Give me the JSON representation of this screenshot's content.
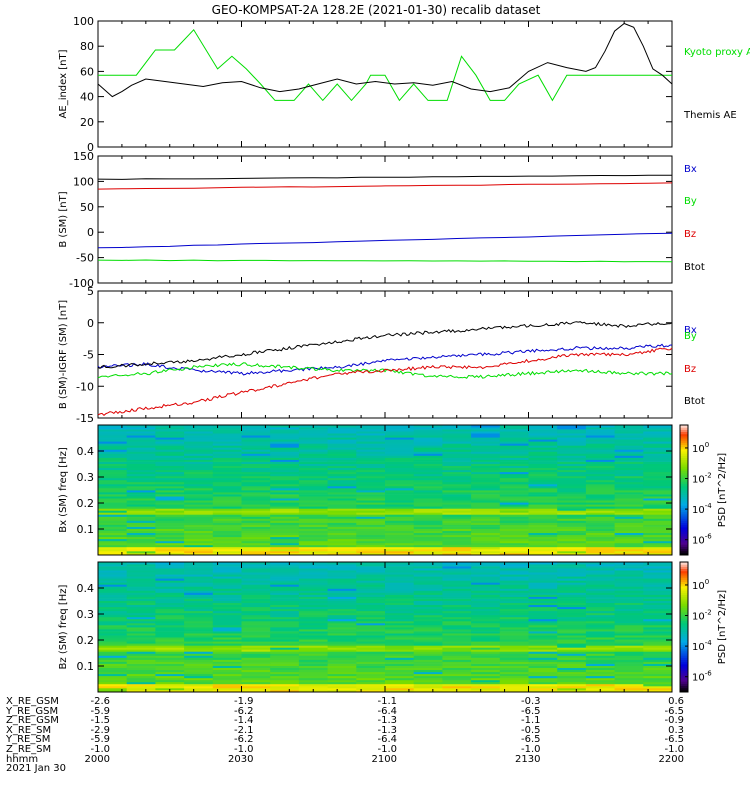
{
  "title": "GEO-KOMPSAT-2A 128.2E (2021-01-30) recalib dataset",
  "colors": {
    "black": "#000000",
    "blue": "#0000cc",
    "green": "#00dd00",
    "red": "#dd0000"
  },
  "chart_data": [
    {
      "id": "ae",
      "type": "line",
      "ylabel": "AE_index [nT]",
      "ylim": [
        0,
        100
      ],
      "yticks": [
        0,
        20,
        40,
        60,
        80,
        100
      ],
      "xlim": [
        0,
        120
      ],
      "series": [
        {
          "name": "Kyoto proxy AE",
          "color": "#00dd00",
          "x": [
            0,
            8,
            12,
            16,
            20,
            25,
            28,
            31,
            34,
            37,
            41,
            44,
            47,
            50,
            53,
            56,
            57,
            60,
            63,
            66,
            69,
            73,
            76,
            79,
            82,
            85,
            88,
            92,
            95,
            98,
            101,
            104,
            107,
            111,
            114,
            117,
            120
          ],
          "y": [
            57,
            57,
            77,
            77,
            93,
            62,
            72,
            62,
            50,
            37,
            37,
            50,
            37,
            50,
            37,
            50,
            57,
            57,
            37,
            50,
            37,
            37,
            72,
            57,
            37,
            37,
            50,
            57,
            37,
            57,
            57,
            57,
            57,
            57,
            57,
            57,
            57
          ]
        },
        {
          "name": "Themis AE",
          "color": "#000000",
          "x": [
            0,
            3,
            5,
            7,
            10,
            14,
            18,
            22,
            26,
            30,
            34,
            38,
            42,
            46,
            50,
            54,
            58,
            62,
            66,
            70,
            74,
            78,
            82,
            86,
            90,
            94,
            98,
            102,
            104,
            106,
            108,
            110,
            112,
            114,
            116,
            118,
            120
          ],
          "y": [
            50,
            40,
            44,
            49,
            54,
            52,
            50,
            48,
            51,
            52,
            47,
            44,
            46,
            50,
            54,
            50,
            52,
            50,
            51,
            49,
            52,
            46,
            44,
            47,
            60,
            67,
            63,
            60,
            63,
            76,
            92,
            98,
            95,
            80,
            62,
            57,
            50
          ]
        }
      ]
    },
    {
      "id": "b",
      "type": "line",
      "ylabel": "B (SM) [nT]",
      "ylim": [
        -100,
        150
      ],
      "yticks": [
        -100,
        -50,
        0,
        50,
        100,
        150
      ],
      "xlim": [
        0,
        120
      ],
      "series": [
        {
          "name": "Bx",
          "color": "#0000cc",
          "x": [
            0,
            120
          ],
          "y": [
            -31,
            -2
          ]
        },
        {
          "name": "By",
          "color": "#00dd00",
          "x": [
            0,
            120
          ],
          "y": [
            -55,
            -58
          ]
        },
        {
          "name": "Bz",
          "color": "#dd0000",
          "x": [
            0,
            120
          ],
          "y": [
            85,
            97
          ]
        },
        {
          "name": "Btot",
          "color": "#000000",
          "x": [
            0,
            120
          ],
          "y": [
            104,
            112
          ]
        }
      ]
    },
    {
      "id": "dbb",
      "type": "line",
      "ylabel": "B (SM)-IGRF (SM) [nT]",
      "ylim": [
        -15,
        5
      ],
      "yticks": [
        -15,
        -10,
        -5,
        0,
        5
      ],
      "xlim": [
        0,
        120
      ],
      "series": [
        {
          "name": "Bx",
          "color": "#0000cc",
          "x": [
            0,
            10,
            20,
            30,
            40,
            50,
            60,
            70,
            80,
            90,
            100,
            110,
            120
          ],
          "y": [
            -7,
            -6.5,
            -7.5,
            -8,
            -7.5,
            -7,
            -6,
            -5.5,
            -5,
            -4.5,
            -4,
            -4,
            -3.5
          ]
        },
        {
          "name": "By",
          "color": "#00dd00",
          "x": [
            0,
            10,
            20,
            30,
            40,
            50,
            60,
            70,
            80,
            90,
            100,
            110,
            120
          ],
          "y": [
            -8.5,
            -8,
            -7,
            -6.5,
            -7,
            -7.5,
            -7.5,
            -8.5,
            -8.5,
            -8,
            -7.5,
            -8,
            -8
          ]
        },
        {
          "name": "Bz",
          "color": "#dd0000",
          "x": [
            0,
            10,
            20,
            30,
            40,
            50,
            60,
            70,
            80,
            90,
            100,
            110,
            120
          ],
          "y": [
            -14.5,
            -13.5,
            -12.5,
            -11,
            -9.5,
            -8,
            -7.5,
            -7,
            -7,
            -6,
            -5,
            -5,
            -4
          ]
        },
        {
          "name": "Btot",
          "color": "#000000",
          "x": [
            0,
            10,
            20,
            30,
            40,
            50,
            60,
            70,
            80,
            90,
            100,
            110,
            120
          ],
          "y": [
            -7,
            -6.5,
            -6,
            -5,
            -4,
            -3,
            -2,
            -1.5,
            -1,
            -0.5,
            0,
            -0.5,
            0
          ]
        }
      ]
    },
    {
      "id": "bx_spec",
      "type": "heatmap",
      "ylabel": "Bx (SM) freq [Hz]",
      "ylim": [
        0,
        0.5
      ],
      "yticks": [
        0.1,
        0.2,
        0.3,
        0.4
      ],
      "xlim": [
        0,
        120
      ],
      "colorbar_label": "PSD [nT^2/Hz]",
      "colorbar_ticks": [
        "10^0",
        "10^-2",
        "10^-4",
        "10^-6"
      ],
      "colorbar_tick_values": [
        0,
        -2,
        -4,
        -6
      ],
      "colorbar_range": [
        -7,
        1.5
      ]
    },
    {
      "id": "bz_spec",
      "type": "heatmap",
      "ylabel": "Bz (SM) freq [Hz]",
      "ylim": [
        0,
        0.5
      ],
      "yticks": [
        0.1,
        0.2,
        0.3,
        0.4
      ],
      "xlim": [
        0,
        120
      ],
      "colorbar_label": "PSD [nT^2/Hz]",
      "colorbar_ticks": [
        "10^0",
        "10^-2",
        "10^-4",
        "10^-6"
      ],
      "colorbar_tick_values": [
        0,
        -2,
        -4,
        -6
      ],
      "colorbar_range": [
        -7,
        1.5
      ]
    }
  ],
  "orbit_table": {
    "tick_minutes": [
      0,
      30,
      60,
      90,
      120
    ],
    "rows": [
      {
        "label": "X_RE_GSM",
        "values": [
          "-2.6",
          "-1.9",
          "-1.1",
          "-0.3",
          "0.6"
        ]
      },
      {
        "label": "Y_RE_GSM",
        "values": [
          "-5.9",
          "-6.2",
          "-6.4",
          "-6.5",
          "-6.5"
        ]
      },
      {
        "label": "Z_RE_GSM",
        "values": [
          "-1.5",
          "-1.4",
          "-1.3",
          "-1.1",
          "-0.9"
        ]
      },
      {
        "label": "X_RE_SM",
        "values": [
          "-2.9",
          "-2.1",
          "-1.3",
          "-0.5",
          "0.3"
        ]
      },
      {
        "label": "Y_RE_SM",
        "values": [
          "-5.9",
          "-6.2",
          "-6.4",
          "-6.5",
          "-6.5"
        ]
      },
      {
        "label": "Z_RE_SM",
        "values": [
          "-1.0",
          "-1.0",
          "-1.0",
          "-1.0",
          "-1.0"
        ]
      },
      {
        "label": "hhmm",
        "values": [
          "2000",
          "2030",
          "2100",
          "2130",
          "2200"
        ]
      }
    ],
    "date": "2021 Jan 30"
  }
}
